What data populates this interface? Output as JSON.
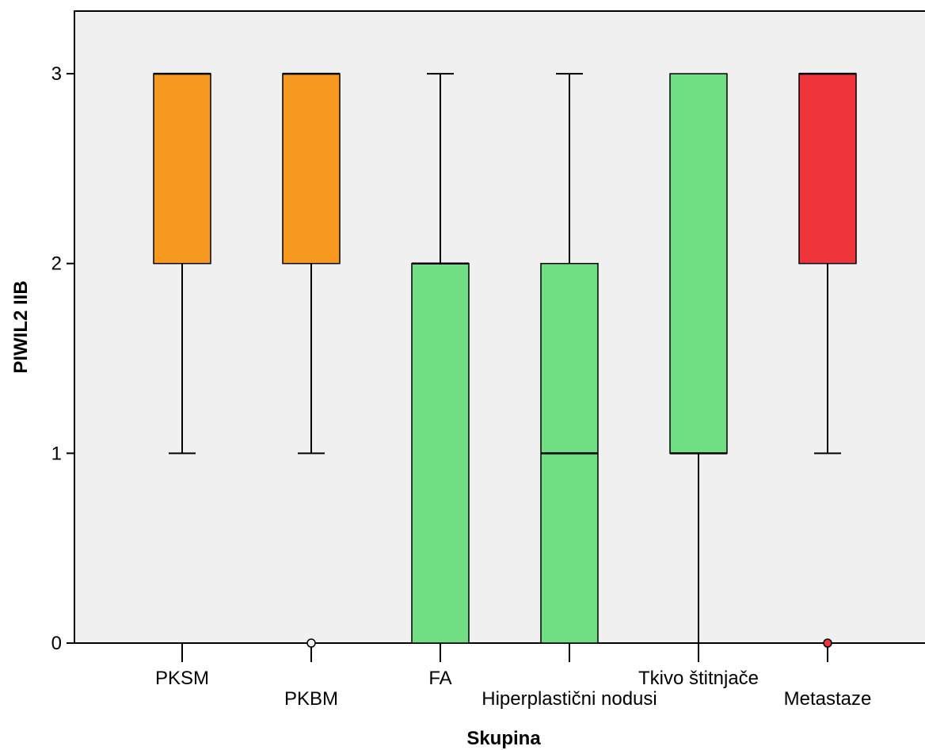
{
  "chart_data": {
    "type": "boxplot",
    "xlabel": "Skupina",
    "ylabel": "PIWIL2 IIB",
    "ylim": [
      0,
      3.33
    ],
    "yticks": [
      0,
      1,
      2,
      3
    ],
    "grid": false,
    "background_color": "#f0f0f0",
    "groups": [
      {
        "label": "PKSM",
        "min": 1,
        "q1": 2,
        "median": 3,
        "q3": 3,
        "max": 3,
        "outliers": [],
        "color": "#f7991e",
        "label_row": 0
      },
      {
        "label": "PKBM",
        "min": 1,
        "q1": 2,
        "median": 3,
        "q3": 3,
        "max": 3,
        "outliers": [
          0
        ],
        "color": "#f7991e",
        "label_row": 1
      },
      {
        "label": "FA",
        "min": 0,
        "q1": 0,
        "median": 2,
        "q3": 2,
        "max": 3,
        "outliers": [],
        "color": "#70df84",
        "label_row": 0
      },
      {
        "label": "Hiperplastični nodusi",
        "min": 0,
        "q1": 0,
        "median": 1,
        "q3": 2,
        "max": 3,
        "outliers": [],
        "color": "#70df84",
        "label_row": 1
      },
      {
        "label": "Tkivo štitnjače",
        "min": 0,
        "q1": 1,
        "median": 1,
        "q3": 3,
        "max": 3,
        "outliers": [],
        "color": "#70df84",
        "label_row": 0
      },
      {
        "label": "Metastaze",
        "min": 1,
        "q1": 2,
        "median": 3,
        "q3": 3,
        "max": 3,
        "outliers": [
          0
        ],
        "color": "#ef343c",
        "label_row": 1
      }
    ]
  }
}
